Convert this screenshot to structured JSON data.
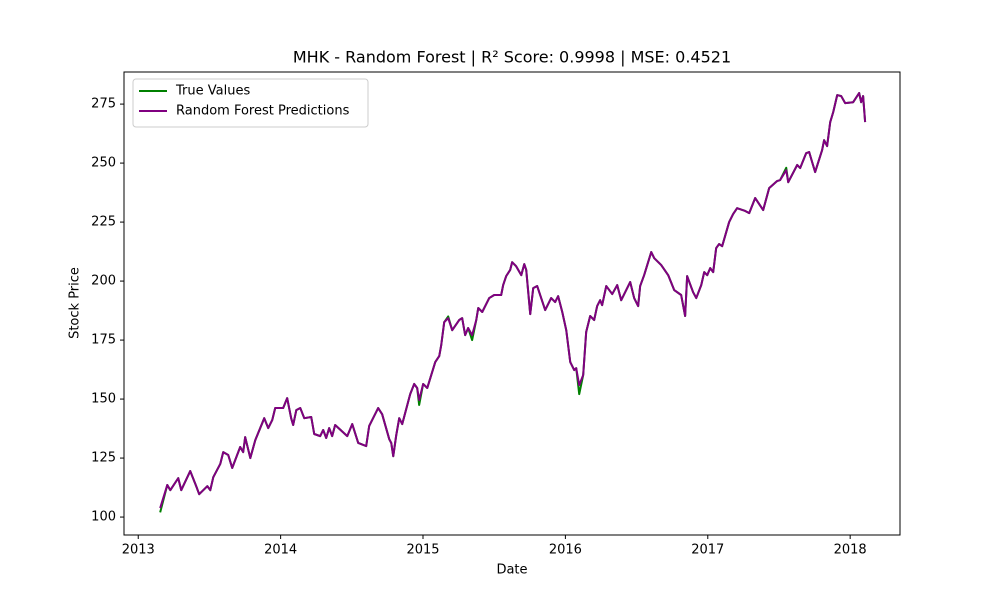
{
  "chart_data": {
    "type": "line",
    "title": "MHK - Random Forest | R² Score: 0.9998 | MSE: 0.4521",
    "x_label": "Date",
    "y_label": "Stock Price",
    "x": [
      2013.154,
      2013.204,
      2013.225,
      2013.281,
      2013.302,
      2013.365,
      2013.407,
      2013.428,
      2013.485,
      2013.506,
      2013.527,
      2013.576,
      2013.597,
      2013.632,
      2013.66,
      2013.716,
      2013.737,
      2013.751,
      2013.787,
      2013.822,
      2013.885,
      2013.913,
      2013.941,
      2013.962,
      2014.018,
      2014.046,
      2014.074,
      2014.088,
      2014.11,
      2014.138,
      2014.166,
      2014.215,
      2014.236,
      2014.278,
      2014.299,
      2014.32,
      2014.341,
      2014.362,
      2014.383,
      2014.468,
      2014.503,
      2014.545,
      2014.601,
      2014.622,
      2014.685,
      2014.713,
      2014.763,
      2014.777,
      2014.791,
      2014.812,
      2014.833,
      2014.854,
      2014.91,
      2014.938,
      2014.959,
      2014.973,
      2015.001,
      2015.03,
      2015.086,
      2015.114,
      2015.128,
      2015.149,
      2015.177,
      2015.205,
      2015.254,
      2015.275,
      2015.296,
      2015.317,
      2015.345,
      2015.374,
      2015.388,
      2015.416,
      2015.465,
      2015.5,
      2015.549,
      2015.563,
      2015.584,
      2015.612,
      2015.626,
      2015.654,
      2015.69,
      2015.711,
      2015.725,
      2015.753,
      2015.774,
      2015.802,
      2015.858,
      2015.9,
      2015.928,
      2015.949,
      2015.978,
      2016.006,
      2016.034,
      2016.062,
      2016.076,
      2016.097,
      2016.125,
      2016.146,
      2016.174,
      2016.202,
      2016.223,
      2016.244,
      2016.258,
      2016.287,
      2016.329,
      2016.364,
      2016.392,
      2016.455,
      2016.483,
      2016.511,
      2016.525,
      2016.553,
      2016.581,
      2016.603,
      2016.624,
      2016.673,
      2016.722,
      2016.764,
      2016.813,
      2016.841,
      2016.855,
      2016.897,
      2016.919,
      2016.954,
      2016.975,
      2016.996,
      2017.017,
      2017.038,
      2017.059,
      2017.08,
      2017.101,
      2017.15,
      2017.178,
      2017.206,
      2017.263,
      2017.291,
      2017.333,
      2017.389,
      2017.431,
      2017.487,
      2017.508,
      2017.551,
      2017.565,
      2017.628,
      2017.649,
      2017.691,
      2017.712,
      2017.733,
      2017.754,
      2017.803,
      2017.817,
      2017.838,
      2017.86,
      2017.881,
      2017.909,
      2017.937,
      2017.965,
      2018.021,
      2018.063,
      2018.077,
      2018.091,
      2018.105
    ],
    "series": [
      {
        "name": "True Values",
        "color": "#008000",
        "values": [
          102.0,
          113.6,
          111.4,
          116.5,
          111.4,
          119.5,
          113.1,
          109.7,
          113.1,
          111.4,
          116.9,
          122.5,
          127.5,
          126.3,
          120.8,
          129.7,
          127.5,
          133.9,
          125.0,
          132.6,
          141.9,
          137.7,
          141.1,
          146.2,
          146.2,
          150.4,
          141.9,
          139.0,
          145.3,
          146.2,
          141.9,
          142.4,
          135.2,
          134.3,
          136.9,
          133.5,
          137.7,
          134.3,
          139.0,
          134.3,
          139.4,
          131.4,
          130.1,
          138.6,
          146.2,
          143.6,
          133.0,
          131.4,
          125.8,
          134.7,
          141.9,
          139.4,
          152.1,
          156.4,
          154.7,
          147.5,
          156.4,
          154.7,
          165.7,
          168.2,
          172.9,
          182.6,
          185.0,
          179.2,
          183.5,
          184.3,
          177.1,
          180.1,
          175.0,
          183.5,
          188.6,
          186.9,
          192.8,
          194.1,
          194.1,
          198.3,
          202.1,
          204.7,
          208.0,
          206.3,
          202.5,
          207.2,
          204.7,
          186.0,
          197.0,
          197.9,
          187.7,
          192.8,
          191.1,
          193.6,
          186.9,
          179.2,
          165.7,
          162.3,
          163.1,
          152.1,
          160.2,
          178.4,
          185.2,
          183.5,
          189.4,
          191.9,
          189.8,
          197.9,
          194.5,
          198.3,
          191.9,
          199.6,
          192.8,
          189.4,
          197.9,
          202.5,
          208.0,
          212.3,
          209.7,
          206.8,
          202.5,
          196.2,
          194.1,
          185.2,
          202.1,
          195.3,
          192.8,
          198.3,
          203.8,
          202.5,
          205.5,
          203.8,
          214.0,
          215.7,
          214.8,
          225.0,
          228.4,
          230.9,
          229.7,
          228.8,
          235.2,
          230.1,
          239.4,
          242.4,
          242.8,
          248.0,
          241.9,
          249.2,
          247.9,
          254.2,
          254.7,
          250.4,
          246.2,
          255.5,
          259.7,
          257.2,
          267.4,
          271.6,
          278.8,
          278.4,
          275.4,
          275.8,
          279.7,
          275.8,
          278.4,
          267.4
        ]
      },
      {
        "name": "Random Forest Predictions",
        "color": "#800080",
        "values": [
          103.8,
          113.6,
          111.4,
          116.5,
          111.4,
          119.5,
          113.1,
          109.7,
          113.1,
          111.4,
          116.9,
          122.5,
          127.5,
          126.3,
          120.8,
          129.7,
          127.5,
          133.9,
          125.0,
          132.6,
          141.9,
          137.7,
          141.1,
          146.2,
          146.2,
          150.4,
          141.9,
          139.0,
          145.3,
          146.2,
          141.9,
          142.4,
          135.2,
          134.3,
          136.9,
          133.5,
          137.7,
          134.3,
          139.0,
          134.3,
          139.4,
          131.4,
          130.1,
          138.6,
          146.2,
          143.6,
          133.0,
          131.4,
          125.8,
          134.7,
          141.9,
          139.4,
          152.1,
          156.4,
          154.7,
          149.6,
          156.4,
          154.7,
          165.7,
          168.2,
          172.9,
          182.6,
          184.3,
          179.2,
          183.5,
          184.3,
          177.1,
          180.1,
          177.1,
          183.5,
          188.6,
          186.9,
          192.8,
          194.1,
          194.1,
          198.3,
          202.1,
          204.7,
          208.0,
          206.3,
          202.5,
          207.2,
          204.7,
          186.0,
          197.0,
          197.9,
          187.7,
          192.8,
          191.1,
          193.6,
          186.9,
          179.2,
          165.7,
          162.3,
          163.1,
          155.9,
          160.2,
          178.4,
          185.2,
          183.5,
          189.4,
          191.9,
          189.8,
          197.9,
          194.5,
          198.3,
          191.9,
          199.6,
          192.8,
          189.4,
          197.9,
          202.5,
          208.0,
          212.3,
          209.7,
          206.8,
          202.5,
          196.2,
          194.1,
          185.2,
          202.1,
          195.3,
          192.8,
          198.3,
          203.8,
          202.5,
          205.5,
          203.8,
          214.0,
          215.7,
          214.8,
          225.0,
          228.4,
          230.9,
          229.7,
          228.8,
          235.2,
          230.1,
          239.4,
          242.4,
          242.8,
          247.0,
          241.9,
          249.2,
          247.9,
          254.2,
          254.7,
          250.4,
          246.2,
          255.5,
          259.7,
          257.2,
          267.4,
          271.6,
          278.8,
          278.4,
          275.4,
          275.8,
          279.7,
          275.8,
          278.4,
          267.4
        ]
      }
    ],
    "xlim": [
      2012.9,
      2018.35
    ],
    "ylim": [
      92.4,
      288.6
    ],
    "xticks": [
      2013,
      2014,
      2015,
      2016,
      2017,
      2018
    ],
    "yticks": [
      100,
      125,
      150,
      175,
      200,
      225,
      250,
      275
    ],
    "legend": "upper left",
    "grid": false
  }
}
